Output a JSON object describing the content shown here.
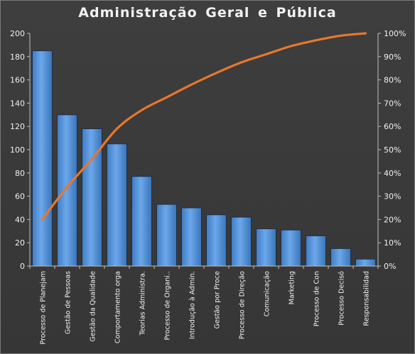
{
  "chart_data": {
    "type": "bar",
    "title": "Administração  Geral  e Pública",
    "categories": [
      "Processo de Planejam",
      "Gestão de Pessoas",
      "Gestão da Qualidade",
      "Comportamento orga",
      "Teorias Administra.",
      "Processo de Organi..",
      "Introdução à Admin.",
      "Gestão por Proce",
      "Processo de Direção",
      "Comunicação",
      "Marketing",
      "Processo de Con",
      "Processo Decisó",
      "Responsabilidad"
    ],
    "series": [
      {
        "type": "bar",
        "axis": "left",
        "values": [
          185,
          130,
          118,
          105,
          77,
          53,
          50,
          44,
          42,
          32,
          31,
          26,
          15,
          6
        ]
      },
      {
        "type": "line",
        "axis": "right",
        "values": [
          20,
          34,
          46,
          59,
          67,
          72.5,
          78,
          83,
          87.5,
          91,
          94.5,
          97,
          99,
          100
        ]
      }
    ],
    "ylim": [
      0,
      200
    ],
    "y2lim": [
      0,
      100
    ],
    "yticks": [
      "0",
      "20",
      "40",
      "60",
      "80",
      "100",
      "120",
      "140",
      "160",
      "180",
      "200"
    ],
    "y2ticks": [
      "0%",
      "10%",
      "20%",
      "30%",
      "40%",
      "50%",
      "60%",
      "70%",
      "80%",
      "90%",
      "100%"
    ],
    "grid": false,
    "colors": {
      "bar": "#4f8fd8",
      "bar_light": "#6aa6e8",
      "bar_edge": "#1d2f4a",
      "line": "#e8772e",
      "axis": "#bfbfbf",
      "text": "#f0f0f0"
    }
  }
}
